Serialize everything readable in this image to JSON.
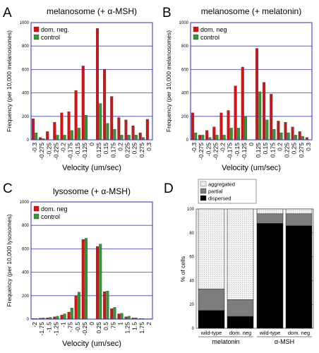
{
  "panel_letters": [
    "A",
    "B",
    "C",
    "D"
  ],
  "colors": {
    "dom_neg": "#d41414",
    "control": "#2f9a2f",
    "frame": "#2b2bc4",
    "grid": "#4040c8",
    "aggregated": "#e6e6e6",
    "partial": "#7d7d7d",
    "dispersed": "#000000"
  },
  "chart_data": [
    {
      "panel": "A",
      "type": "bar",
      "title": "melanosome (+ α-MSH)",
      "xlabel": "Velocity (um/sec)",
      "ylabel": "Frequency (per 10,000 melanosomes)",
      "ylim": [
        0,
        1000
      ],
      "yticks": [
        0,
        200,
        400,
        600,
        800,
        1000
      ],
      "grid": "horizontal",
      "legend_position": "top-left",
      "categories": [
        "-0.3",
        "-0.275",
        "-0.25",
        "-0.225",
        "-0.2",
        "-0.175",
        "-0.15",
        "-0.125",
        "0",
        "0.125",
        "0.15",
        "0.175",
        "0.2",
        "0.225",
        "0.25",
        "0.275",
        "0.3"
      ],
      "series": [
        {
          "name": "dom. neg.",
          "values": [
            180,
            20,
            70,
            150,
            230,
            240,
            420,
            630,
            0,
            950,
            600,
            370,
            190,
            170,
            120,
            60,
            175
          ]
        },
        {
          "name": "control",
          "values": [
            60,
            10,
            0,
            40,
            40,
            80,
            100,
            210,
            0,
            310,
            140,
            90,
            40,
            40,
            40,
            20,
            0
          ]
        }
      ]
    },
    {
      "panel": "B",
      "type": "bar",
      "title": "melanosome (+ melatonin)",
      "xlabel": "Velocity (um/sec)",
      "ylabel": "Frequency (per 10,000 melanosomes)",
      "ylim": [
        0,
        1000
      ],
      "yticks": [
        0,
        200,
        400,
        600,
        800,
        1000
      ],
      "grid": "horizontal",
      "legend_position": "top-left",
      "categories": [
        "-0.3",
        "-0.275",
        "-0.25",
        "-0.225",
        "-0.2",
        "-0.175",
        "-0.15",
        "-0.125",
        "0",
        "0.125",
        "0.15",
        "0.175",
        "0.2",
        "0.225",
        "0.25",
        "0.275",
        "0.3"
      ],
      "series": [
        {
          "name": "dom. neg",
          "values": [
            230,
            40,
            80,
            110,
            230,
            250,
            460,
            620,
            0,
            780,
            490,
            390,
            160,
            150,
            110,
            70,
            20
          ]
        },
        {
          "name": "control",
          "values": [
            60,
            40,
            20,
            40,
            40,
            100,
            100,
            200,
            0,
            410,
            170,
            90,
            60,
            60,
            40,
            30,
            0
          ]
        }
      ]
    },
    {
      "panel": "C",
      "type": "bar",
      "title": "lysosome (+ α-MSH)",
      "xlabel": "Velocity (um/sec)",
      "ylabel": "Frequency (per 10,000 lysosomes)",
      "ylim": [
        0,
        1000
      ],
      "yticks": [
        0,
        200,
        400,
        600,
        800,
        1000
      ],
      "grid": "horizontal",
      "legend_position": "top-left",
      "categories": [
        "-2",
        "-1.75",
        "-1.5",
        "-1.25",
        "-1",
        "-.75",
        "-0.5",
        "-0.25",
        "0",
        "0.25",
        "0.5",
        ".75",
        "1",
        "1.25",
        "1.5",
        "1.75",
        "2"
      ],
      "series": [
        {
          "name": "dom. neg",
          "values": [
            5,
            8,
            10,
            20,
            35,
            60,
            200,
            680,
            0,
            620,
            235,
            90,
            45,
            20,
            10,
            5,
            3
          ]
        },
        {
          "name": "control",
          "values": [
            5,
            10,
            15,
            25,
            45,
            95,
            230,
            690,
            0,
            640,
            240,
            100,
            50,
            25,
            10,
            5,
            3
          ]
        }
      ]
    },
    {
      "panel": "D",
      "type": "bar",
      "stacked": true,
      "ylabel": "% of cells",
      "ylim": [
        0,
        100
      ],
      "yticks": [
        0,
        20,
        40,
        60,
        80,
        100
      ],
      "legend_position": "top-left",
      "categories": [
        "wild-type",
        "dom. neg",
        "wild-type",
        "dom. neg"
      ],
      "groups": [
        {
          "label": "melatonin",
          "categories": [
            "wild-type",
            "dom. neg"
          ]
        },
        {
          "label": "α-MSH",
          "categories": [
            "wild-type",
            "dom. neg"
          ]
        }
      ],
      "series": [
        {
          "name": "dispersed",
          "values": [
            15,
            10,
            88,
            86
          ]
        },
        {
          "name": "partial",
          "values": [
            18,
            14,
            8,
            10
          ]
        },
        {
          "name": "aggregated",
          "values": [
            67,
            76,
            4,
            4
          ]
        }
      ]
    }
  ]
}
